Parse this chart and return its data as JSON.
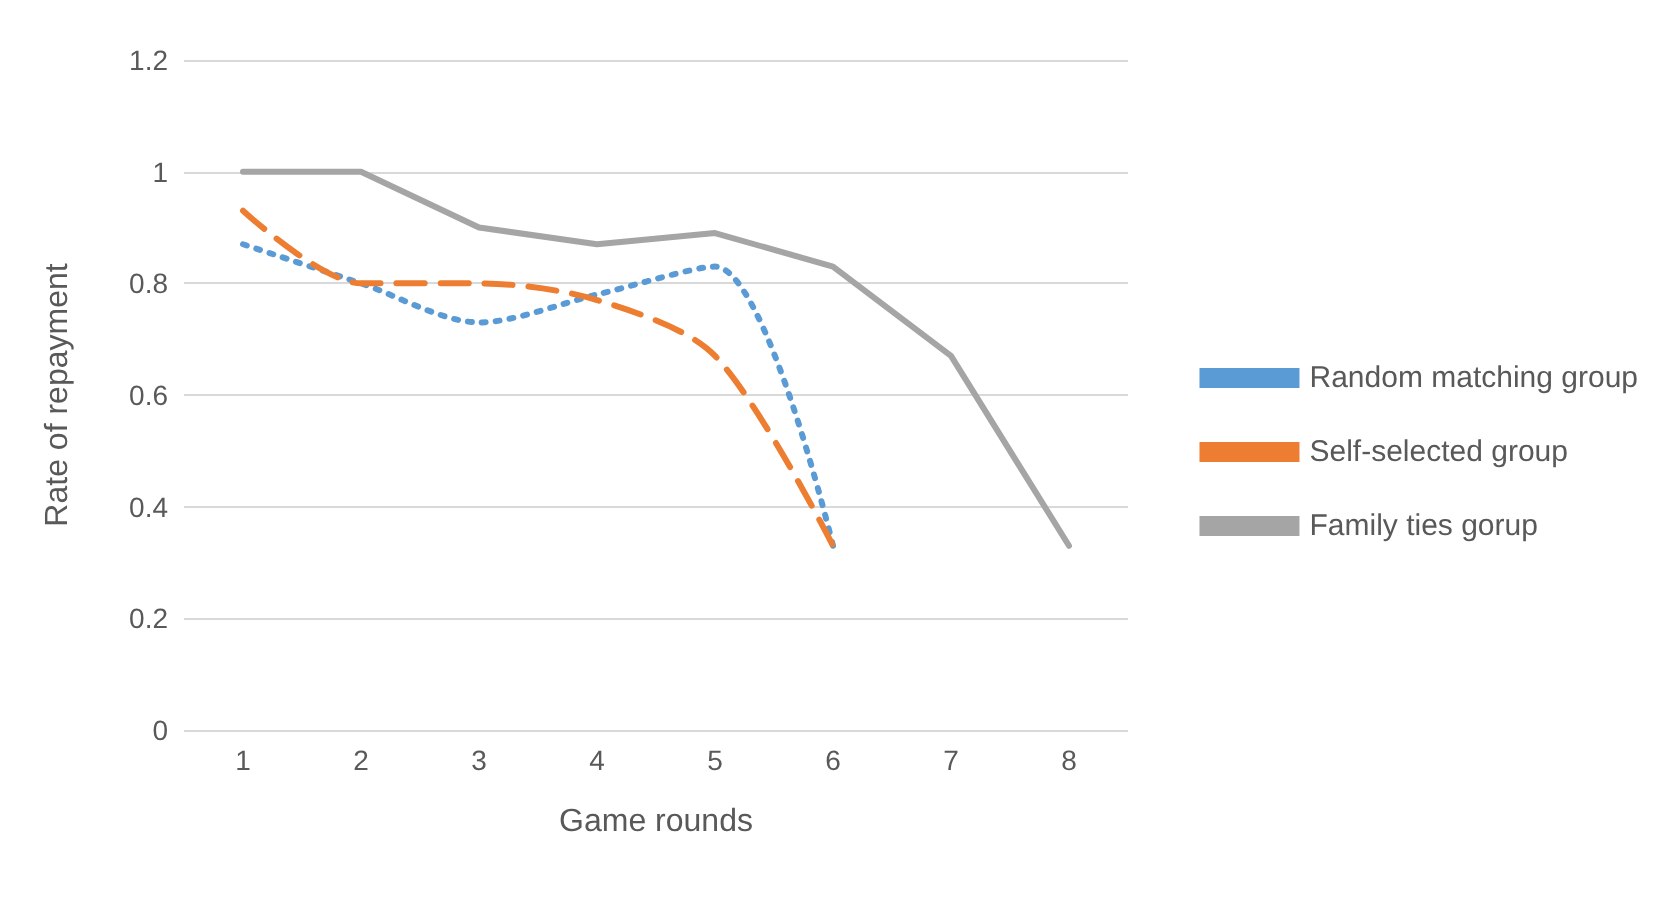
{
  "chart_data": {
    "type": "line",
    "xlabel": "Game rounds",
    "ylabel": "Rate of repayment",
    "categories": [
      "1",
      "2",
      "3",
      "4",
      "5",
      "6",
      "7",
      "8"
    ],
    "series": [
      {
        "name": "Random matching group",
        "color": "#5b9bd5",
        "line_style": "dotted",
        "values": [
          0.87,
          0.8,
          0.73,
          0.78,
          0.83,
          0.33,
          null,
          null
        ]
      },
      {
        "name": "Self-selected group",
        "color": "#ed7d31",
        "line_style": "dashed",
        "values": [
          0.93,
          0.8,
          0.8,
          0.77,
          0.67,
          0.33,
          null,
          null
        ]
      },
      {
        "name": "Family ties gorup",
        "color": "#a5a5a5",
        "line_style": "solid",
        "values": [
          1,
          1,
          0.9,
          0.87,
          0.89,
          0.83,
          0.67,
          0.33
        ]
      }
    ],
    "ylim": [
      0,
      1.2
    ],
    "yticks": [
      0,
      0.2,
      0.4,
      0.6,
      0.8,
      1,
      1.2
    ],
    "grid": "y",
    "legend": "right",
    "marker": "none"
  }
}
